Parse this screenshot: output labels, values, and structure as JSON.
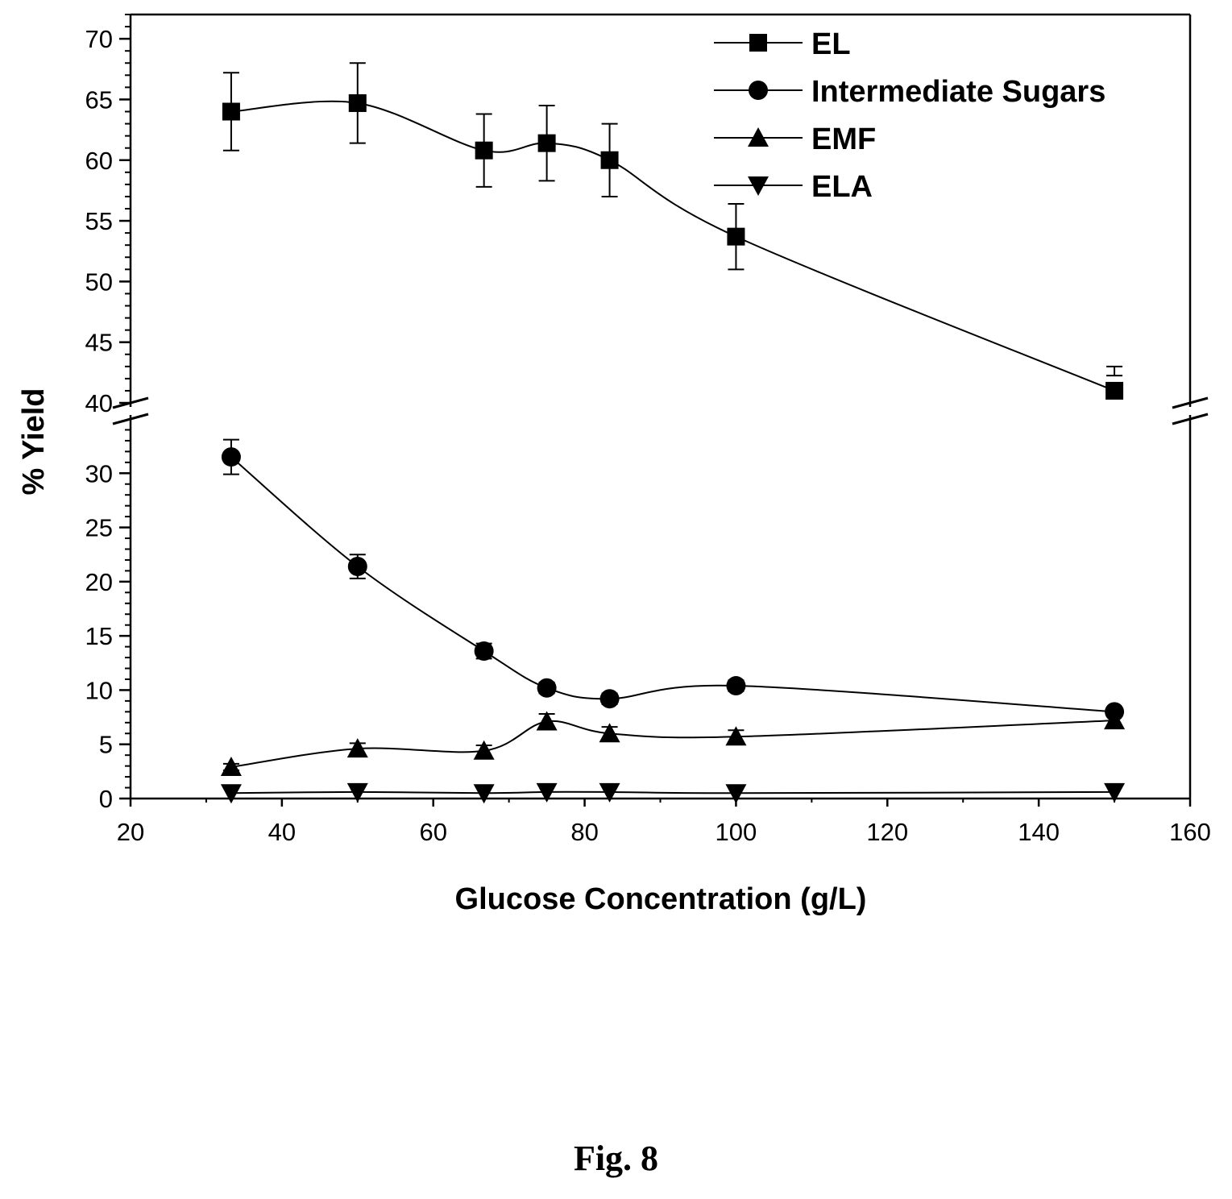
{
  "chart_data": {
    "type": "line",
    "xlabel": "Glucose Concentration (g/L)",
    "ylabel": "% Yield",
    "xlim": [
      20,
      160
    ],
    "xticks": [
      20,
      40,
      60,
      80,
      100,
      120,
      140,
      160
    ],
    "ylim_lower": [
      0,
      35
    ],
    "yticks_lower": [
      0,
      5,
      10,
      15,
      20,
      25,
      30
    ],
    "ylim_upper": [
      40,
      72
    ],
    "yticks_upper": [
      40,
      45,
      50,
      55,
      60,
      65,
      70
    ],
    "axis_break": true,
    "grid": false,
    "legend_position": "top-right",
    "series": [
      {
        "name": "EL",
        "marker": "square",
        "x": [
          33.3,
          50,
          66.7,
          75,
          83.3,
          100,
          150
        ],
        "y": [
          64.0,
          64.7,
          60.8,
          61.4,
          60.0,
          53.7,
          41.0
        ],
        "error": [
          3.2,
          3.3,
          3.0,
          3.1,
          3.0,
          2.7,
          2.0
        ]
      },
      {
        "name": "Intermediate Sugars",
        "marker": "circle",
        "x": [
          33.3,
          50,
          66.7,
          75,
          83.3,
          100,
          150
        ],
        "y": [
          31.5,
          21.4,
          13.6,
          10.2,
          9.2,
          10.4,
          8.0
        ],
        "error": [
          1.6,
          1.1,
          0.7,
          0.5,
          0.5,
          0.5,
          0.4
        ]
      },
      {
        "name": "EMF",
        "marker": "triangle-up",
        "x": [
          33.3,
          50,
          66.7,
          75,
          83.3,
          100,
          150
        ],
        "y": [
          2.9,
          4.6,
          4.4,
          7.1,
          6.0,
          5.7,
          7.2
        ],
        "error": [
          0.3,
          0.5,
          0.5,
          0.7,
          0.6,
          0.6,
          0.7
        ]
      },
      {
        "name": "ELA",
        "marker": "triangle-down",
        "x": [
          33.3,
          50,
          66.7,
          75,
          83.3,
          100,
          150
        ],
        "y": [
          0.5,
          0.6,
          0.5,
          0.6,
          0.6,
          0.5,
          0.6
        ],
        "error": [
          0,
          0,
          0,
          0,
          0,
          0,
          0
        ]
      }
    ]
  },
  "caption": "Fig. 8"
}
